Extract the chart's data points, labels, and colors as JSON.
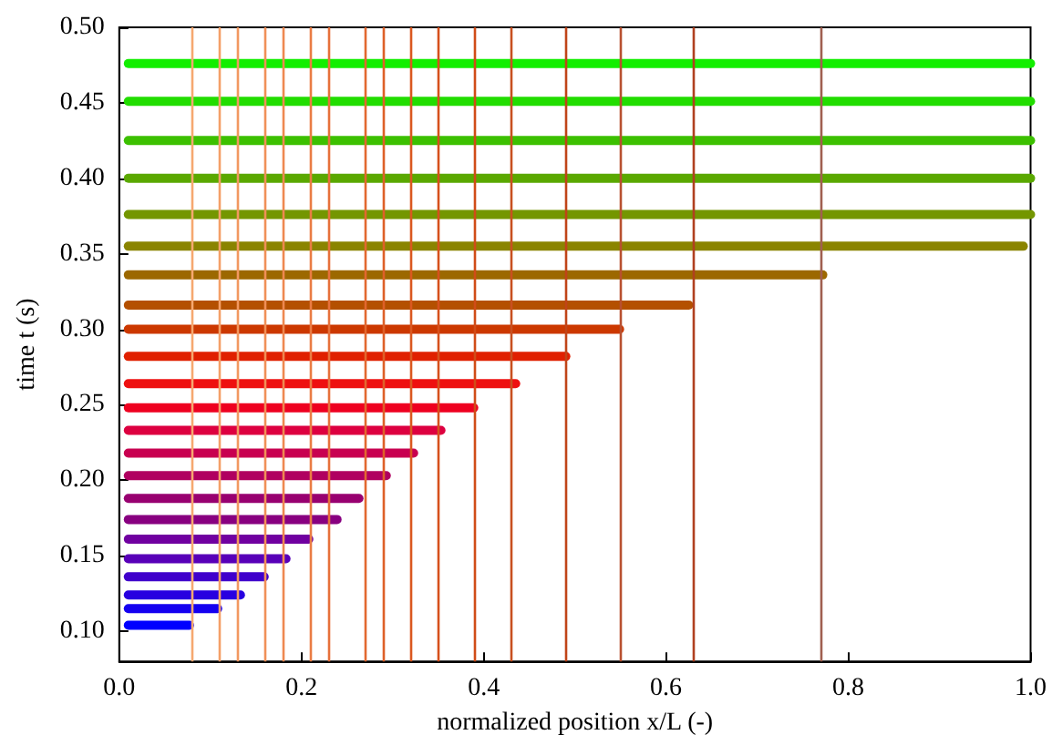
{
  "chart_data": {
    "type": "line",
    "xlabel": "normalized position x/L (-)",
    "ylabel": "time t (s)",
    "xlim": [
      0,
      1
    ],
    "ylim": [
      0.08,
      0.5
    ],
    "xticks": [
      {
        "value": 0,
        "label": "0.0"
      },
      {
        "value": 0.2,
        "label": "0.2"
      },
      {
        "value": 0.4,
        "label": "0.4"
      },
      {
        "value": 0.6,
        "label": "0.6"
      },
      {
        "value": 0.8,
        "label": "0.8"
      },
      {
        "value": 1,
        "label": "1.0"
      }
    ],
    "yticks": [
      {
        "value": 0.1,
        "label": "0.10"
      },
      {
        "value": 0.15,
        "label": "0.15"
      },
      {
        "value": 0.2,
        "label": "0.20"
      },
      {
        "value": 0.25,
        "label": "0.25"
      },
      {
        "value": 0.3,
        "label": "0.30"
      },
      {
        "value": 0.35,
        "label": "0.35"
      },
      {
        "value": 0.4,
        "label": "0.40"
      },
      {
        "value": 0.45,
        "label": "0.45"
      },
      {
        "value": 0.5,
        "label": "0.50"
      }
    ],
    "grid": false,
    "marker": "none",
    "line_style": "solid",
    "series": [
      {
        "color": "#0000ff",
        "x": [
          0.01,
          0.077
        ],
        "values": [
          0.104,
          0.104
        ]
      },
      {
        "color": "#1400f0",
        "x": [
          0.01,
          0.108
        ],
        "values": [
          0.115,
          0.115
        ]
      },
      {
        "color": "#2800e0",
        "x": [
          0.01,
          0.133
        ],
        "values": [
          0.124,
          0.124
        ]
      },
      {
        "color": "#4000cc",
        "x": [
          0.01,
          0.159
        ],
        "values": [
          0.136,
          0.136
        ]
      },
      {
        "color": "#5800b8",
        "x": [
          0.01,
          0.183
        ],
        "values": [
          0.148,
          0.148
        ]
      },
      {
        "color": "#7000a0",
        "x": [
          0.01,
          0.208
        ],
        "values": [
          0.161,
          0.161
        ]
      },
      {
        "color": "#880080",
        "x": [
          0.01,
          0.239
        ],
        "values": [
          0.174,
          0.174
        ]
      },
      {
        "color": "#980070",
        "x": [
          0.01,
          0.263
        ],
        "values": [
          0.188,
          0.188
        ]
      },
      {
        "color": "#b00060",
        "x": [
          0.01,
          0.293
        ],
        "values": [
          0.203,
          0.203
        ]
      },
      {
        "color": "#c80050",
        "x": [
          0.01,
          0.323
        ],
        "values": [
          0.218,
          0.218
        ]
      },
      {
        "color": "#dd0040",
        "x": [
          0.01,
          0.353
        ],
        "values": [
          0.233,
          0.233
        ]
      },
      {
        "color": "#ee0020",
        "x": [
          0.01,
          0.389
        ],
        "values": [
          0.248,
          0.248
        ]
      },
      {
        "color": "#ee1010",
        "x": [
          0.01,
          0.435
        ],
        "values": [
          0.264,
          0.264
        ]
      },
      {
        "color": "#e02000",
        "x": [
          0.01,
          0.49
        ],
        "values": [
          0.282,
          0.282
        ]
      },
      {
        "color": "#cc3800",
        "x": [
          0.01,
          0.549
        ],
        "values": [
          0.3,
          0.3
        ]
      },
      {
        "color": "#b45000",
        "x": [
          0.01,
          0.625
        ],
        "values": [
          0.316,
          0.316
        ]
      },
      {
        "color": "#9c6800",
        "x": [
          0.01,
          0.772
        ],
        "values": [
          0.336,
          0.336
        ]
      },
      {
        "color": "#8a8400",
        "x": [
          0.01,
          0.992
        ],
        "values": [
          0.355,
          0.355
        ]
      },
      {
        "color": "#749600",
        "x": [
          0.01,
          1
        ],
        "values": [
          0.376,
          0.376
        ]
      },
      {
        "color": "#5aa800",
        "x": [
          0.01,
          1
        ],
        "values": [
          0.4,
          0.4
        ]
      },
      {
        "color": "#3cc000",
        "x": [
          0.01,
          1
        ],
        "values": [
          0.425,
          0.425
        ]
      },
      {
        "color": "#22dd00",
        "x": [
          0.01,
          1
        ],
        "values": [
          0.451,
          0.451
        ]
      },
      {
        "color": "#12ee00",
        "x": [
          0.01,
          1
        ],
        "values": [
          0.476,
          0.476
        ]
      }
    ],
    "ref_lines": [
      {
        "axis": "x",
        "value": 0.08,
        "color": "#f6a870"
      },
      {
        "axis": "x",
        "value": 0.11,
        "color": "#f4a068"
      },
      {
        "axis": "x",
        "value": 0.13,
        "color": "#f29860"
      },
      {
        "axis": "x",
        "value": 0.16,
        "color": "#f09058"
      },
      {
        "axis": "x",
        "value": 0.18,
        "color": "#ee8850"
      },
      {
        "axis": "x",
        "value": 0.21,
        "color": "#ea7c44"
      },
      {
        "axis": "x",
        "value": 0.23,
        "color": "#e6703a"
      },
      {
        "axis": "x",
        "value": 0.27,
        "color": "#e26830"
      },
      {
        "axis": "x",
        "value": 0.29,
        "color": "#de6028"
      },
      {
        "axis": "x",
        "value": 0.32,
        "color": "#da5820"
      },
      {
        "axis": "x",
        "value": 0.35,
        "color": "#d6501c"
      },
      {
        "axis": "x",
        "value": 0.39,
        "color": "#d04c18"
      },
      {
        "axis": "x",
        "value": 0.43,
        "color": "#c85020"
      },
      {
        "axis": "x",
        "value": 0.49,
        "color": "#c04418"
      },
      {
        "axis": "x",
        "value": 0.55,
        "color": "#b85030"
      },
      {
        "axis": "x",
        "value": 0.63,
        "color": "#b04020"
      },
      {
        "axis": "x",
        "value": 0.77,
        "color": "#a06050"
      }
    ]
  }
}
